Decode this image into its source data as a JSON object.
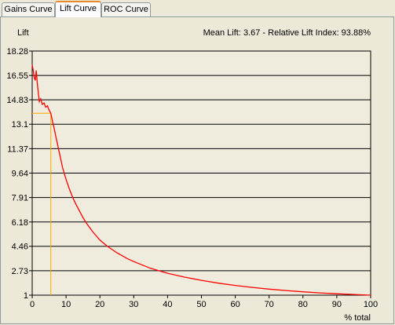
{
  "tabs": [
    {
      "label": "Gains Curve",
      "active": false
    },
    {
      "label": "Lift Curve",
      "active": true
    },
    {
      "label": "ROC Curve",
      "active": false
    }
  ],
  "chart_data": {
    "type": "line",
    "ylabel": "Lift",
    "xlabel": "% total",
    "header_text": "Mean Lift: 3.67 - Relative Lift Index: 93.88%",
    "y_ticks": [
      "18.28",
      "16.55",
      "14.83",
      "13.1",
      "11.37",
      "9.64",
      "7.91",
      "6.18",
      "4.46",
      "2.73",
      "1"
    ],
    "x_ticks": [
      "0",
      "10",
      "20",
      "30",
      "40",
      "50",
      "60",
      "70",
      "80",
      "90",
      "100"
    ],
    "xlim": [
      0,
      100
    ],
    "ylim": [
      1,
      18.28
    ],
    "grid": "horizontal",
    "colors": {
      "curve": "#ff0000",
      "marker": "#ffaa00",
      "grid": "#000000",
      "plot_bg": "#f0ecdd"
    },
    "marker": {
      "x": 5.5,
      "y": 13.88
    },
    "series": [
      {
        "x": [
          0,
          0.3,
          0.6,
          0.9,
          1.2,
          1.5,
          1.8,
          2.1,
          2.5,
          3.0,
          3.5,
          4.0,
          4.5,
          5.0,
          5.5,
          6.0,
          6.5,
          7.0,
          8.0,
          9.0,
          10,
          11,
          12,
          13,
          14,
          15,
          16,
          18,
          20,
          22,
          25,
          28,
          30,
          35,
          40,
          45,
          50,
          55,
          60,
          65,
          70,
          75,
          80,
          85,
          90,
          95,
          100
        ],
        "y": [
          17.3,
          16.9,
          16.4,
          16.2,
          16.9,
          16.0,
          15.3,
          14.7,
          14.9,
          14.5,
          14.6,
          14.3,
          14.4,
          14.1,
          13.88,
          13.3,
          12.8,
          12.2,
          11.1,
          10.0,
          9.2,
          8.5,
          7.9,
          7.4,
          6.95,
          6.5,
          6.1,
          5.45,
          4.9,
          4.5,
          4.0,
          3.6,
          3.38,
          2.9,
          2.55,
          2.28,
          2.05,
          1.85,
          1.69,
          1.55,
          1.43,
          1.33,
          1.24,
          1.16,
          1.1,
          1.05,
          1.0
        ]
      }
    ]
  }
}
